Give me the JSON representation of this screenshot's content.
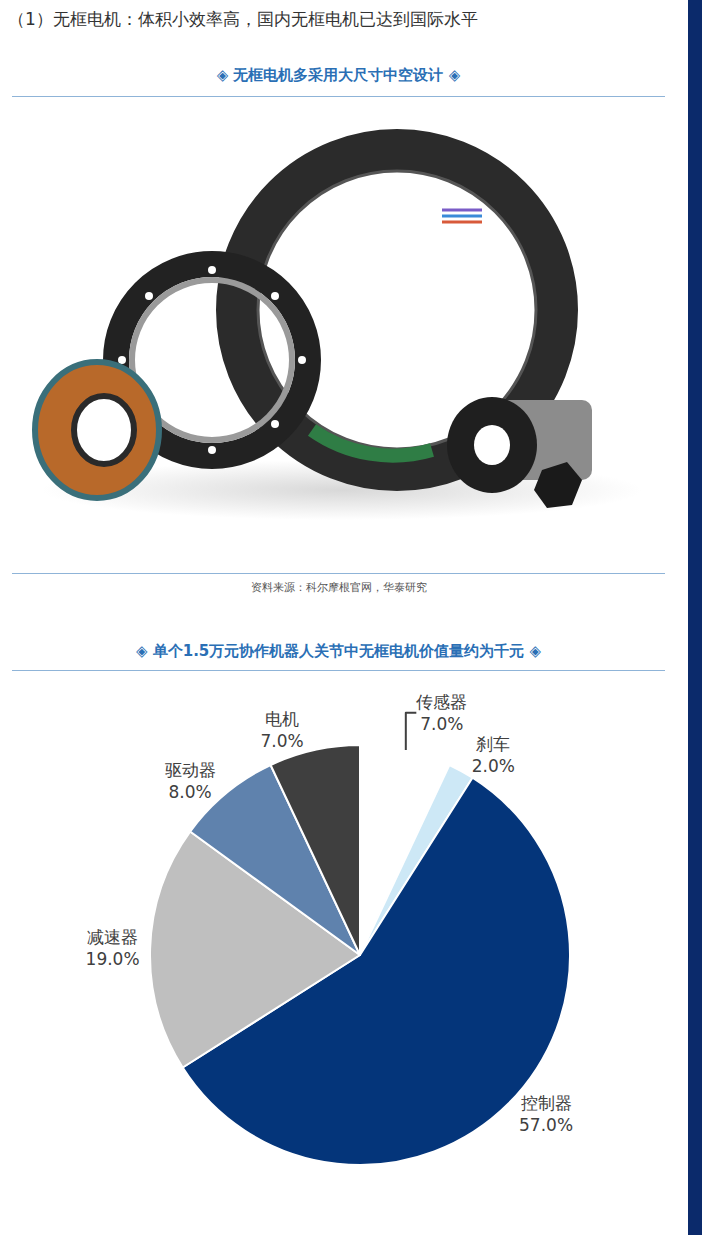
{
  "heading": "（1）无框电机：体积小效率高，国内无框电机已达到国际水平",
  "figure": {
    "title": "◈ 无框电机多采用大尺寸中空设计 ◈",
    "source": "资料来源：科尔摩根官网，华泰研究"
  },
  "chart_data": {
    "type": "pie",
    "title": "◈ 单个1.5万元协作机器人关节中无框电机价值量约为千元 ◈",
    "categories": [
      "传感器",
      "刹车",
      "控制器",
      "减速器",
      "驱动器",
      "电机"
    ],
    "values": [
      7,
      2,
      57,
      19,
      8,
      7
    ],
    "value_labels": [
      "7.0%",
      "2.0%",
      "57.0%",
      "19.0%",
      "8.0%",
      "7.0%"
    ],
    "colors": [
      "#a30f12",
      "#cde8f6",
      "#04357a",
      "#bfbfbf",
      "#5f82ad",
      "#3f3f3f"
    ],
    "data_labels": true
  }
}
